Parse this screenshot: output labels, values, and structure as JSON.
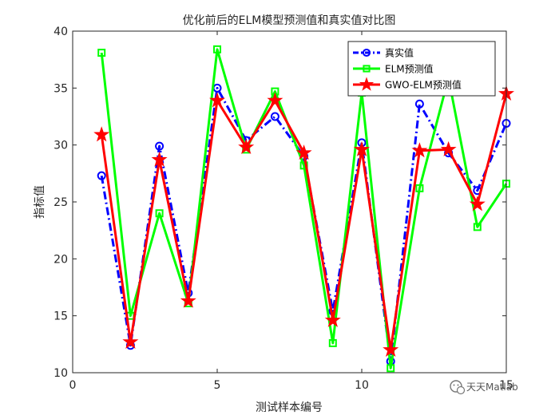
{
  "chart_data": {
    "type": "line",
    "title": "优化前后的ELM模型预测值和真实值对比图",
    "xlabel": "测试样本编号",
    "ylabel": "指标值",
    "xlim": [
      0,
      15
    ],
    "ylim": [
      10,
      40
    ],
    "xticks": [
      0,
      5,
      10,
      15
    ],
    "yticks": [
      10,
      15,
      20,
      25,
      30,
      35,
      40
    ],
    "grid": false,
    "legend_position": "top-right",
    "x": [
      1,
      2,
      3,
      4,
      5,
      6,
      7,
      8,
      9,
      10,
      11,
      12,
      13,
      14,
      15
    ],
    "series": [
      {
        "name": "真实值",
        "color": "#0000ff",
        "line_style": "dash-dot",
        "marker": "circle",
        "values": [
          27.3,
          12.4,
          29.9,
          17.0,
          35.0,
          30.4,
          32.5,
          29.0,
          15.4,
          30.2,
          11.0,
          33.6,
          29.3,
          26.0,
          31.9
        ]
      },
      {
        "name": "ELM预测值",
        "color": "#00ff00",
        "line_style": "solid",
        "marker": "square",
        "values": [
          38.1,
          15.0,
          24.0,
          16.1,
          38.4,
          29.6,
          34.7,
          28.2,
          12.6,
          34.6,
          10.4,
          26.2,
          35.9,
          22.8,
          26.6
        ]
      },
      {
        "name": "GWO-ELM预测值",
        "color": "#ff0000",
        "line_style": "solid",
        "marker": "star",
        "values": [
          30.9,
          12.7,
          28.7,
          16.3,
          33.9,
          29.8,
          33.9,
          29.3,
          14.6,
          29.6,
          12.0,
          29.5,
          29.6,
          24.8,
          34.5
        ]
      }
    ]
  },
  "watermark": {
    "text": "天天Matlab",
    "icon": "wechat-icon"
  }
}
